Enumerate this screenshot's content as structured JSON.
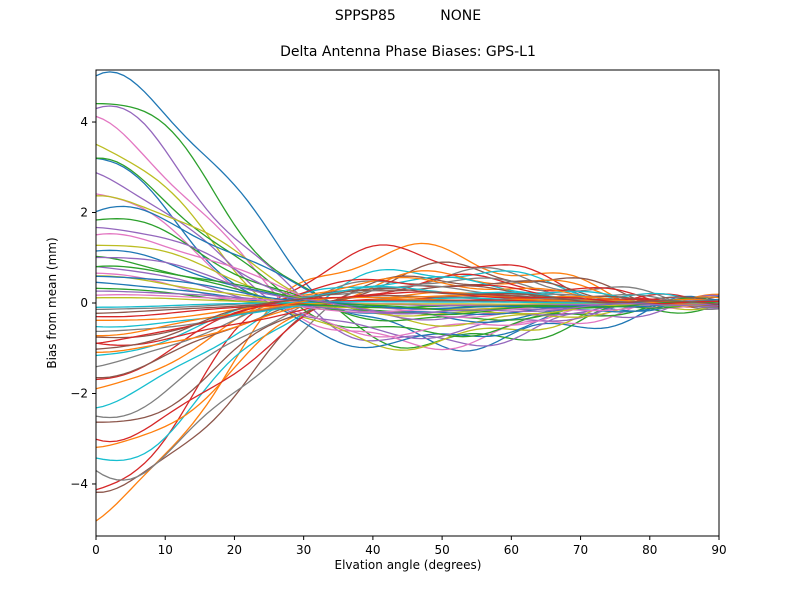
{
  "figure": {
    "background": "#ffffff"
  },
  "chart_data": {
    "type": "line",
    "suptitle": "SPPSP85          NONE",
    "title": "Delta Antenna Phase Biases: GPS-L1",
    "xlabel": "Elvation angle (degrees)",
    "ylabel": "Bias from mean (mm)",
    "xlim": [
      0,
      90
    ],
    "ylim": [
      -5.15,
      5.15
    ],
    "x_ticks": [
      0,
      10,
      20,
      30,
      40,
      50,
      60,
      70,
      80,
      90
    ],
    "y_ticks": [
      -4,
      -2,
      0,
      2,
      4
    ],
    "grid": false,
    "legend": "none",
    "axes_color": "#000000",
    "colors": [
      "#1f77b4",
      "#ff7f0e",
      "#2ca02c",
      "#d62728",
      "#9467bd",
      "#8c564b",
      "#e377c2",
      "#7f7f7f",
      "#bcbd22",
      "#17becf"
    ],
    "series_model": "y(x) = amp * cos(pi*(x+phase)/60) / (1+(x/30)^2) * (1-(x/90)^4) + 0.04*amp*sin(0.3*x+phase); one antenna bias curve per series, starting at amp (mm) at 0 deg elevation, crossing near 30 deg, opposite-sign bulge near 45-50 deg, converging to 0 at 90 deg",
    "amplitudes": [
      5.0,
      -4.85,
      4.6,
      -4.45,
      4.3,
      -4.15,
      4.0,
      -3.85,
      3.7,
      -3.55,
      3.4,
      -3.25,
      3.1,
      -3.0,
      2.9,
      -2.75,
      2.6,
      -2.5,
      2.35,
      -2.25,
      2.1,
      -2.0,
      1.9,
      -1.8,
      1.7,
      -1.6,
      1.5,
      -1.42,
      1.33,
      -1.25,
      1.15,
      -1.08,
      1.0,
      -0.92,
      0.85,
      -0.78,
      0.7,
      -0.64,
      0.58,
      -0.52,
      0.46,
      -0.4,
      0.35,
      -0.3,
      0.26,
      -0.22,
      0.18,
      -0.15,
      0.12,
      -0.1,
      0.6,
      -0.7,
      0.8,
      -0.9,
      1.05,
      -1.1
    ],
    "phases": [
      -5,
      3,
      -2,
      5,
      0,
      -4,
      2,
      -6,
      4,
      -1,
      6,
      -3,
      1,
      -5,
      3,
      -2,
      5,
      0,
      -4,
      2,
      -6,
      4,
      -1,
      6,
      -3,
      1,
      -5,
      3,
      -2,
      5,
      0,
      -4,
      2,
      -6,
      4,
      -1,
      6,
      -3,
      1,
      -5,
      3,
      -2,
      5,
      0,
      -4,
      2,
      -6,
      4,
      -1,
      6,
      -3,
      1,
      -5,
      3,
      -2,
      5
    ]
  }
}
